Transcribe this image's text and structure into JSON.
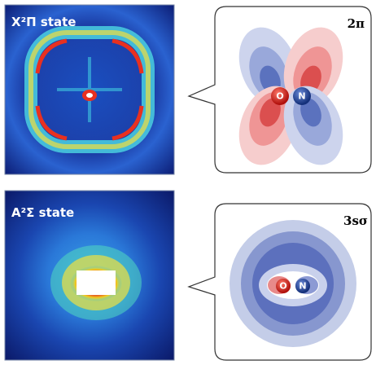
{
  "panels": [
    {
      "state": "X²Π state",
      "orbital": "2π",
      "atoms": [
        "O",
        "N"
      ]
    },
    {
      "state": "A²Σ state",
      "orbital": "3sσ",
      "atoms": [
        "O",
        "N"
      ]
    }
  ]
}
